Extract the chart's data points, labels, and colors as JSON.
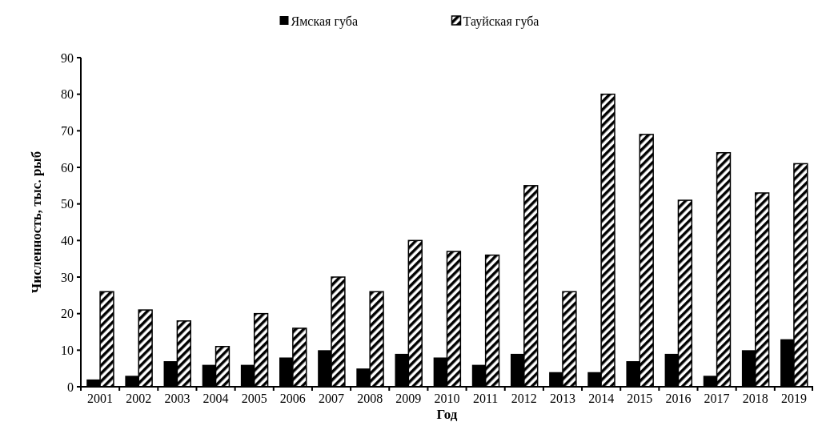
{
  "chart_data": {
    "type": "bar",
    "xlabel": "Год",
    "ylabel": "Численность, тыс. рыб",
    "categories": [
      "2001",
      "2002",
      "2003",
      "2004",
      "2005",
      "2006",
      "2007",
      "2008",
      "2009",
      "2010",
      "2011",
      "2012",
      "2013",
      "2014",
      "2015",
      "2016",
      "2017",
      "2018",
      "2019"
    ],
    "series": [
      {
        "name": "Ямская губа",
        "color": "#000000",
        "values": [
          2,
          3,
          7,
          6,
          6,
          8,
          10,
          5,
          9,
          8,
          6,
          9,
          4,
          4,
          7,
          9,
          3,
          10,
          13
        ]
      },
      {
        "name": "Тауйская губа",
        "color": "#000000",
        "values": [
          26,
          21,
          18,
          11,
          20,
          16,
          30,
          26,
          40,
          37,
          36,
          55,
          26,
          80,
          69,
          51,
          64,
          53,
          61
        ]
      }
    ],
    "ylim": [
      0,
      90
    ],
    "yticks": [
      0,
      10,
      20,
      30,
      40,
      50,
      60,
      70,
      80,
      90
    ],
    "grid": false,
    "legend": "top"
  }
}
